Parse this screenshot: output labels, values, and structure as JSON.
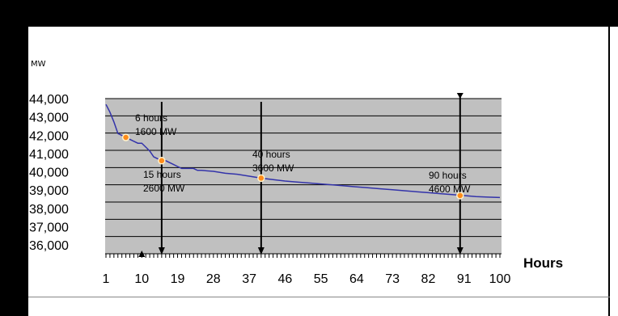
{
  "chart_data": {
    "type": "line",
    "ylabel": "MW",
    "xlabel": "Hours",
    "yticks": [
      "44,000",
      "43,000",
      "42,000",
      "41,000",
      "40,000",
      "39,000",
      "38,000",
      "37,000",
      "36,000"
    ],
    "xticks": [
      "1",
      "10",
      "19",
      "28",
      "37",
      "46",
      "55",
      "64",
      "73",
      "82",
      "91",
      "100"
    ],
    "ylim": [
      36000,
      44000
    ],
    "xlim": [
      1,
      100
    ],
    "grid": true,
    "background_color": "#c0c0c0",
    "line_color": "#3333aa",
    "marker_color": "#ff8c1a",
    "series": [
      {
        "x": [
          1,
          2,
          3,
          4,
          5,
          6,
          7,
          8,
          9,
          10,
          11,
          12,
          13,
          14,
          15,
          16,
          17,
          18,
          19,
          20,
          21,
          22,
          23,
          24,
          25,
          28,
          31,
          34,
          37,
          40,
          43,
          46,
          49,
          52,
          55,
          58,
          61,
          64,
          67,
          70,
          73,
          76,
          79,
          82,
          85,
          88,
          91,
          94,
          97,
          100
        ],
        "y": [
          43700,
          43300,
          42800,
          42200,
          42100,
          42000,
          41900,
          41800,
          41700,
          41700,
          41500,
          41300,
          41000,
          40900,
          40800,
          40800,
          40700,
          40600,
          40500,
          40400,
          40400,
          40400,
          40400,
          40300,
          40300,
          40250,
          40150,
          40100,
          40000,
          39900,
          39820,
          39750,
          39700,
          39650,
          39600,
          39550,
          39500,
          39450,
          39400,
          39350,
          39300,
          39250,
          39200,
          39150,
          39100,
          39050,
          39000,
          38950,
          38920,
          38900
        ]
      }
    ],
    "markers": [
      {
        "x": 6,
        "y": 42000
      },
      {
        "x": 15,
        "y": 40800
      },
      {
        "x": 40,
        "y": 39900
      },
      {
        "x": 90,
        "y": 39000
      }
    ],
    "arrows": [
      {
        "x": 15,
        "direction": "down"
      },
      {
        "x": 40,
        "direction": "down"
      },
      {
        "x": 90,
        "direction": "down"
      },
      {
        "x": 10,
        "direction": "up"
      }
    ],
    "annotations": [
      {
        "lines": [
          "6 hours",
          "1600 MW"
        ],
        "x": 6
      },
      {
        "lines": [
          "15 hours",
          "2600 MW"
        ],
        "x": 15
      },
      {
        "lines": [
          "40 hours",
          "3600 MW"
        ],
        "x": 40
      },
      {
        "lines": [
          "90 hours",
          "4600 MW"
        ],
        "x": 90
      }
    ]
  }
}
